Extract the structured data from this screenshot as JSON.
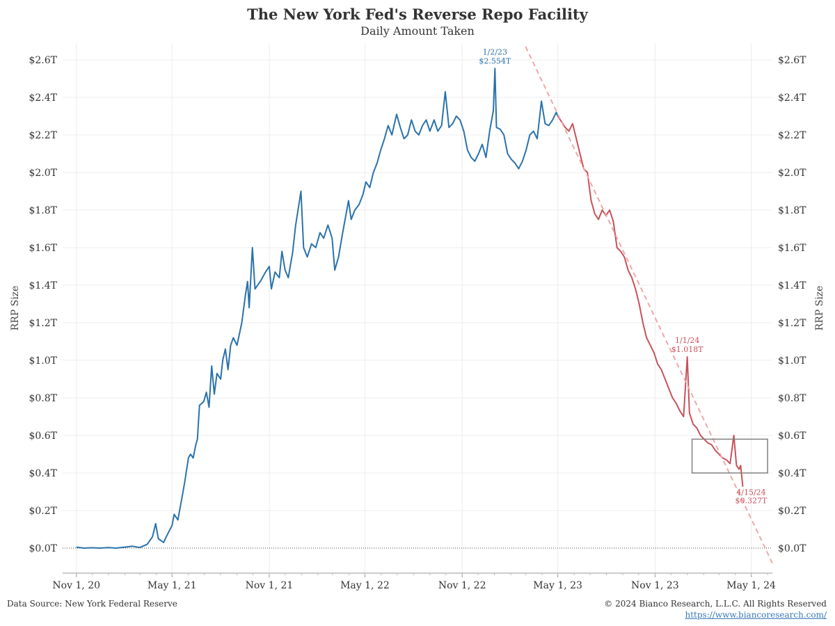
{
  "header": {
    "title": "The New York Fed's Reverse Repo Facility",
    "subtitle": "Daily Amount Taken"
  },
  "footer": {
    "source": "Data Source: New York Federal Reserve",
    "copyright": "© 2024 Bianco Research, L.L.C. All Rights Reserved",
    "url": "https://www.biancoresearch.com/"
  },
  "colors": {
    "blue": "#2a72ab",
    "red": "#c8515a",
    "trend": "#f0a6a6",
    "box": "#808080",
    "grid": "#ececec"
  },
  "chart_data": {
    "type": "line",
    "ylabel": "RRP Size",
    "ylabel_right": "RRP Size",
    "ylim": [
      -0.1,
      2.7
    ],
    "xlim": [
      "2020-10-06",
      "2024-06-10"
    ],
    "yticks": [
      {
        "value": 0.0,
        "label": "$0.0T"
      },
      {
        "value": 0.2,
        "label": "$0.2T"
      },
      {
        "value": 0.4,
        "label": "$0.4T"
      },
      {
        "value": 0.6,
        "label": "$0.6T"
      },
      {
        "value": 0.8,
        "label": "$0.8T"
      },
      {
        "value": 1.0,
        "label": "$1.0T"
      },
      {
        "value": 1.2,
        "label": "$1.2T"
      },
      {
        "value": 1.4,
        "label": "$1.4T"
      },
      {
        "value": 1.6,
        "label": "$1.6T"
      },
      {
        "value": 1.8,
        "label": "$1.8T"
      },
      {
        "value": 2.0,
        "label": "$2.0T"
      },
      {
        "value": 2.2,
        "label": "$2.2T"
      },
      {
        "value": 2.4,
        "label": "$2.4T"
      },
      {
        "value": 2.6,
        "label": "$2.6T"
      }
    ],
    "xticks": [
      {
        "date": "2020-11-01",
        "label": "Nov 1, 20"
      },
      {
        "date": "2021-05-01",
        "label": "May 1, 21"
      },
      {
        "date": "2021-11-01",
        "label": "Nov 1, 21"
      },
      {
        "date": "2022-05-01",
        "label": "May 1, 22"
      },
      {
        "date": "2022-11-01",
        "label": "Nov 1, 22"
      },
      {
        "date": "2023-05-01",
        "label": "May 1, 23"
      },
      {
        "date": "2023-11-01",
        "label": "Nov 1, 23"
      },
      {
        "date": "2024-05-01",
        "label": "May 1, 24"
      }
    ],
    "series": [
      {
        "color": "#2a72ab",
        "points": [
          [
            "2020-11-01",
            0.005
          ],
          [
            "2020-11-15",
            0.0
          ],
          [
            "2020-12-01",
            0.002
          ],
          [
            "2020-12-15",
            0.0
          ],
          [
            "2021-01-01",
            0.003
          ],
          [
            "2021-01-15",
            0.0
          ],
          [
            "2021-02-01",
            0.005
          ],
          [
            "2021-02-15",
            0.01
          ],
          [
            "2021-03-01",
            0.003
          ],
          [
            "2021-03-15",
            0.02
          ],
          [
            "2021-03-25",
            0.06
          ],
          [
            "2021-03-31",
            0.13
          ],
          [
            "2021-04-05",
            0.05
          ],
          [
            "2021-04-15",
            0.03
          ],
          [
            "2021-04-20",
            0.06
          ],
          [
            "2021-05-01",
            0.12
          ],
          [
            "2021-05-05",
            0.18
          ],
          [
            "2021-05-12",
            0.15
          ],
          [
            "2021-05-20",
            0.27
          ],
          [
            "2021-05-25",
            0.35
          ],
          [
            "2021-06-01",
            0.48
          ],
          [
            "2021-06-05",
            0.5
          ],
          [
            "2021-06-10",
            0.48
          ],
          [
            "2021-06-15",
            0.55
          ],
          [
            "2021-06-18",
            0.58
          ],
          [
            "2021-06-22",
            0.76
          ],
          [
            "2021-06-30",
            0.78
          ],
          [
            "2021-07-05",
            0.83
          ],
          [
            "2021-07-10",
            0.75
          ],
          [
            "2021-07-15",
            0.97
          ],
          [
            "2021-07-20",
            0.82
          ],
          [
            "2021-07-25",
            0.93
          ],
          [
            "2021-08-01",
            0.9
          ],
          [
            "2021-08-05",
            1.0
          ],
          [
            "2021-08-10",
            1.06
          ],
          [
            "2021-08-15",
            0.95
          ],
          [
            "2021-08-20",
            1.08
          ],
          [
            "2021-08-25",
            1.12
          ],
          [
            "2021-09-01",
            1.08
          ],
          [
            "2021-09-10",
            1.2
          ],
          [
            "2021-09-17",
            1.35
          ],
          [
            "2021-09-21",
            1.42
          ],
          [
            "2021-09-24",
            1.28
          ],
          [
            "2021-09-30",
            1.6
          ],
          [
            "2021-10-05",
            1.38
          ],
          [
            "2021-10-15",
            1.42
          ],
          [
            "2021-10-25",
            1.47
          ],
          [
            "2021-11-01",
            1.5
          ],
          [
            "2021-11-05",
            1.38
          ],
          [
            "2021-11-12",
            1.47
          ],
          [
            "2021-11-20",
            1.44
          ],
          [
            "2021-11-25",
            1.58
          ],
          [
            "2021-12-01",
            1.48
          ],
          [
            "2021-12-07",
            1.44
          ],
          [
            "2021-12-15",
            1.57
          ],
          [
            "2021-12-21",
            1.72
          ],
          [
            "2021-12-31",
            1.9
          ],
          [
            "2022-01-05",
            1.6
          ],
          [
            "2022-01-12",
            1.55
          ],
          [
            "2022-01-20",
            1.62
          ],
          [
            "2022-01-28",
            1.6
          ],
          [
            "2022-02-05",
            1.68
          ],
          [
            "2022-02-12",
            1.65
          ],
          [
            "2022-02-20",
            1.72
          ],
          [
            "2022-02-28",
            1.65
          ],
          [
            "2022-03-05",
            1.48
          ],
          [
            "2022-03-12",
            1.55
          ],
          [
            "2022-03-20",
            1.68
          ],
          [
            "2022-03-31",
            1.85
          ],
          [
            "2022-04-05",
            1.75
          ],
          [
            "2022-04-12",
            1.8
          ],
          [
            "2022-04-20",
            1.83
          ],
          [
            "2022-04-27",
            1.88
          ],
          [
            "2022-05-03",
            1.95
          ],
          [
            "2022-05-10",
            1.92
          ],
          [
            "2022-05-17",
            2.0
          ],
          [
            "2022-05-24",
            2.05
          ],
          [
            "2022-05-31",
            2.12
          ],
          [
            "2022-06-07",
            2.18
          ],
          [
            "2022-06-14",
            2.25
          ],
          [
            "2022-06-21",
            2.2
          ],
          [
            "2022-06-30",
            2.31
          ],
          [
            "2022-07-07",
            2.24
          ],
          [
            "2022-07-14",
            2.18
          ],
          [
            "2022-07-21",
            2.2
          ],
          [
            "2022-07-28",
            2.28
          ],
          [
            "2022-08-04",
            2.22
          ],
          [
            "2022-08-11",
            2.2
          ],
          [
            "2022-08-18",
            2.25
          ],
          [
            "2022-08-25",
            2.28
          ],
          [
            "2022-09-01",
            2.22
          ],
          [
            "2022-09-09",
            2.28
          ],
          [
            "2022-09-16",
            2.22
          ],
          [
            "2022-09-23",
            2.25
          ],
          [
            "2022-09-30",
            2.43
          ],
          [
            "2022-10-07",
            2.24
          ],
          [
            "2022-10-14",
            2.26
          ],
          [
            "2022-10-21",
            2.3
          ],
          [
            "2022-10-28",
            2.28
          ],
          [
            "2022-11-04",
            2.22
          ],
          [
            "2022-11-11",
            2.12
          ],
          [
            "2022-11-18",
            2.08
          ],
          [
            "2022-11-25",
            2.06
          ],
          [
            "2022-12-02",
            2.1
          ],
          [
            "2022-12-09",
            2.15
          ],
          [
            "2022-12-16",
            2.08
          ],
          [
            "2022-12-23",
            2.22
          ],
          [
            "2022-12-30",
            2.33
          ],
          [
            "2023-01-02",
            2.554
          ],
          [
            "2023-01-05",
            2.24
          ],
          [
            "2023-01-12",
            2.23
          ],
          [
            "2023-01-19",
            2.2
          ],
          [
            "2023-01-26",
            2.1
          ],
          [
            "2023-02-02",
            2.07
          ],
          [
            "2023-02-09",
            2.05
          ],
          [
            "2023-02-16",
            2.02
          ],
          [
            "2023-02-23",
            2.06
          ],
          [
            "2023-03-02",
            2.12
          ],
          [
            "2023-03-09",
            2.2
          ],
          [
            "2023-03-16",
            2.22
          ],
          [
            "2023-03-23",
            2.18
          ],
          [
            "2023-03-31",
            2.38
          ],
          [
            "2023-04-07",
            2.26
          ],
          [
            "2023-04-14",
            2.25
          ],
          [
            "2023-04-21",
            2.28
          ],
          [
            "2023-04-28",
            2.32
          ],
          [
            "2023-05-01",
            2.3
          ]
        ]
      },
      {
        "color": "#c8515a",
        "points": [
          [
            "2023-05-01",
            2.3
          ],
          [
            "2023-05-08",
            2.27
          ],
          [
            "2023-05-15",
            2.24
          ],
          [
            "2023-05-22",
            2.22
          ],
          [
            "2023-05-29",
            2.26
          ],
          [
            "2023-06-05",
            2.18
          ],
          [
            "2023-06-12",
            2.1
          ],
          [
            "2023-06-19",
            2.02
          ],
          [
            "2023-06-26",
            2.0
          ],
          [
            "2023-07-03",
            1.85
          ],
          [
            "2023-07-10",
            1.78
          ],
          [
            "2023-07-17",
            1.75
          ],
          [
            "2023-07-24",
            1.8
          ],
          [
            "2023-07-31",
            1.77
          ],
          [
            "2023-08-07",
            1.8
          ],
          [
            "2023-08-14",
            1.74
          ],
          [
            "2023-08-21",
            1.6
          ],
          [
            "2023-08-28",
            1.58
          ],
          [
            "2023-09-04",
            1.55
          ],
          [
            "2023-09-11",
            1.48
          ],
          [
            "2023-09-18",
            1.44
          ],
          [
            "2023-09-25",
            1.38
          ],
          [
            "2023-10-02",
            1.3
          ],
          [
            "2023-10-09",
            1.2
          ],
          [
            "2023-10-16",
            1.12
          ],
          [
            "2023-10-23",
            1.08
          ],
          [
            "2023-10-30",
            1.04
          ],
          [
            "2023-11-06",
            0.98
          ],
          [
            "2023-11-13",
            0.95
          ],
          [
            "2023-11-20",
            0.9
          ],
          [
            "2023-11-27",
            0.85
          ],
          [
            "2023-12-04",
            0.8
          ],
          [
            "2023-12-11",
            0.77
          ],
          [
            "2023-12-18",
            0.73
          ],
          [
            "2023-12-25",
            0.7
          ],
          [
            "2024-01-01",
            1.018
          ],
          [
            "2024-01-05",
            0.72
          ],
          [
            "2024-01-12",
            0.66
          ],
          [
            "2024-01-19",
            0.64
          ],
          [
            "2024-01-26",
            0.6
          ],
          [
            "2024-02-02",
            0.58
          ],
          [
            "2024-02-09",
            0.56
          ],
          [
            "2024-02-16",
            0.55
          ],
          [
            "2024-02-23",
            0.52
          ],
          [
            "2024-03-01",
            0.5
          ],
          [
            "2024-03-08",
            0.48
          ],
          [
            "2024-03-15",
            0.47
          ],
          [
            "2024-03-22",
            0.45
          ],
          [
            "2024-03-29",
            0.6
          ],
          [
            "2024-04-03",
            0.44
          ],
          [
            "2024-04-08",
            0.42
          ],
          [
            "2024-04-11",
            0.44
          ],
          [
            "2024-04-15",
            0.327
          ]
        ]
      }
    ],
    "trendline": {
      "from": [
        "2023-03-01",
        2.67
      ],
      "to": [
        "2024-06-10",
        -0.08
      ]
    },
    "highlight_box": {
      "x": [
        "2024-01-10",
        "2024-06-01"
      ],
      "y": [
        0.4,
        0.58
      ]
    },
    "annotations": [
      {
        "date": "2023-01-02",
        "value": 2.554,
        "label_date": "1/2/23",
        "label_value": "$2.554T",
        "color": "#2a72ab"
      },
      {
        "date": "2024-01-01",
        "value": 1.018,
        "label_date": "1/1/24",
        "label_value": "$1.018T",
        "color": "#c8515a"
      },
      {
        "date": "2024-04-15",
        "value": 0.327,
        "label_date": "4/15/24",
        "label_value": "$0.327T",
        "color": "#c8515a"
      }
    ]
  }
}
